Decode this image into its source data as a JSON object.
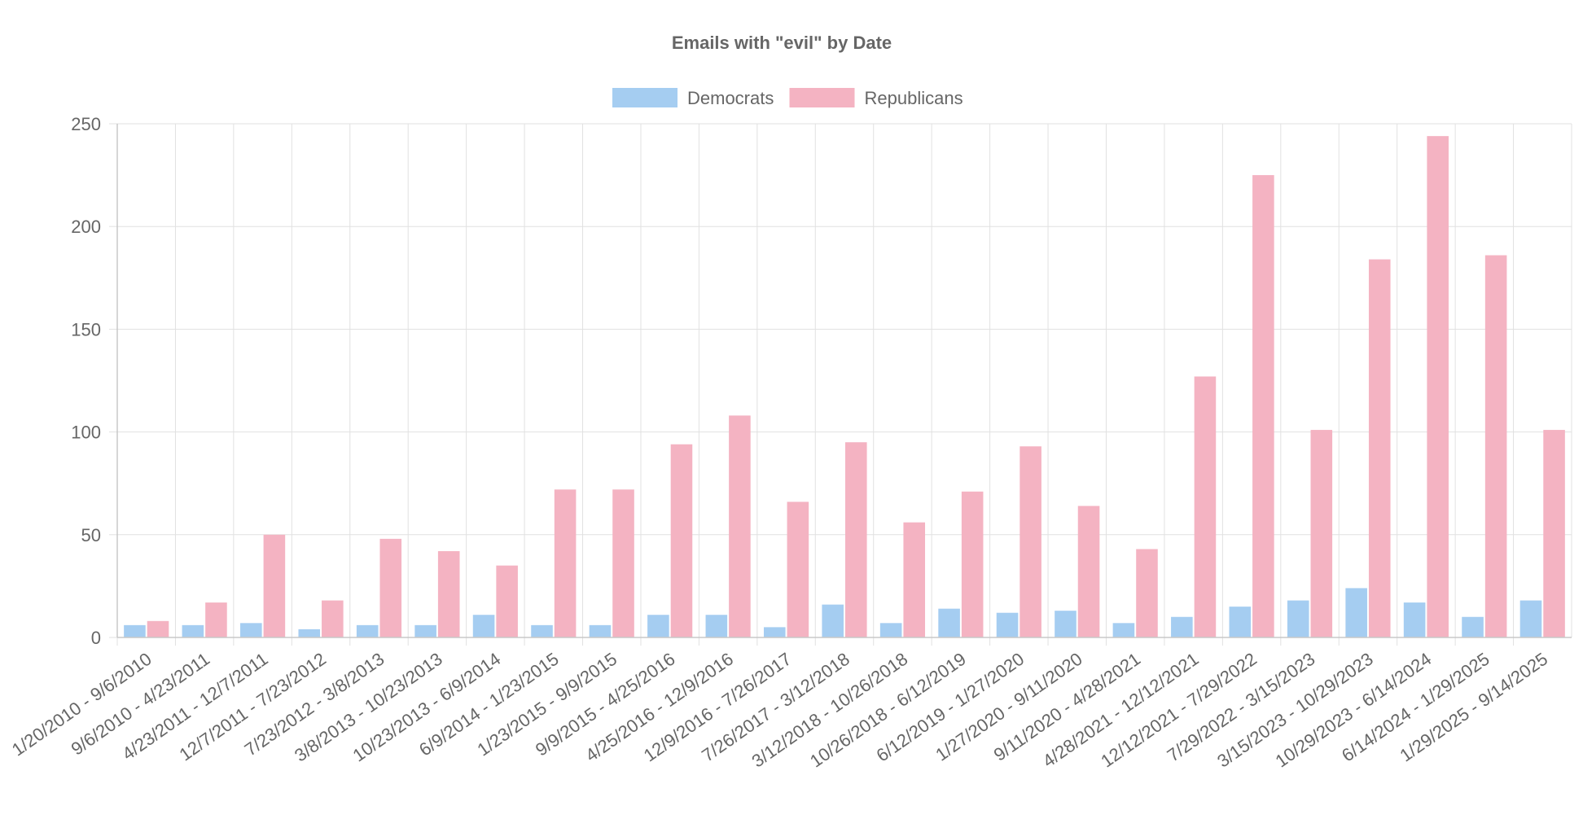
{
  "chart_data": {
    "type": "bar",
    "title": "Emails with \"evil\" by Date",
    "xlabel": "",
    "ylabel": "",
    "ylim": [
      0,
      250
    ],
    "yticks": [
      0,
      50,
      100,
      150,
      200,
      250
    ],
    "grid": true,
    "legend_position": "top-center",
    "categories": [
      "1/20/2010 - 9/6/2010",
      "9/6/2010 - 4/23/2011",
      "4/23/2011 - 12/7/2011",
      "12/7/2011 - 7/23/2012",
      "7/23/2012 - 3/8/2013",
      "3/8/2013 - 10/23/2013",
      "10/23/2013 - 6/9/2014",
      "6/9/2014 - 1/23/2015",
      "1/23/2015 - 9/9/2015",
      "9/9/2015 - 4/25/2016",
      "4/25/2016 - 12/9/2016",
      "12/9/2016 - 7/26/2017",
      "7/26/2017 - 3/12/2018",
      "3/12/2018 - 10/26/2018",
      "10/26/2018 - 6/12/2019",
      "6/12/2019 - 1/27/2020",
      "1/27/2020 - 9/11/2020",
      "9/11/2020 - 4/28/2021",
      "4/28/2021 - 12/12/2021",
      "12/12/2021 - 7/29/2022",
      "7/29/2022 - 3/15/2023",
      "3/15/2023 - 10/29/2023",
      "10/29/2023 - 6/14/2024",
      "6/14/2024 - 1/29/2025",
      "1/29/2025 - 9/14/2025"
    ],
    "series": [
      {
        "name": "Democrats",
        "color": "#a5cdf1",
        "values": [
          6,
          6,
          7,
          4,
          6,
          6,
          11,
          6,
          6,
          11,
          11,
          5,
          16,
          7,
          14,
          12,
          13,
          7,
          10,
          15,
          18,
          24,
          17,
          10,
          18
        ]
      },
      {
        "name": "Republicans",
        "color": "#f4b3c2",
        "values": [
          8,
          17,
          50,
          18,
          48,
          42,
          35,
          72,
          72,
          94,
          108,
          66,
          95,
          56,
          71,
          93,
          64,
          43,
          127,
          225,
          101,
          184,
          244,
          186,
          101
        ]
      }
    ]
  }
}
